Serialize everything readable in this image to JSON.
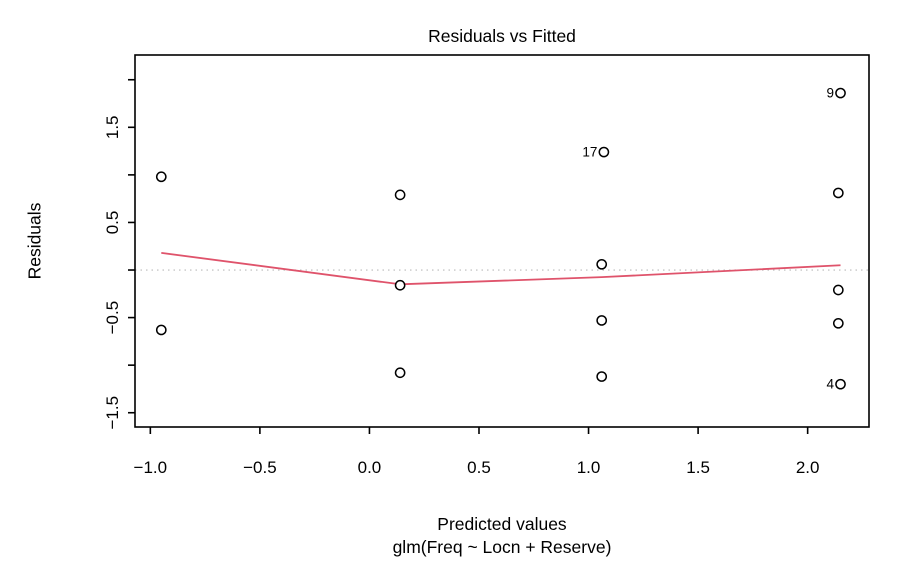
{
  "chart_data": {
    "type": "scatter",
    "title": "Residuals vs Fitted",
    "xlabel": "Predicted values",
    "sublabel": "glm(Freq ~ Locn + Reserve)",
    "ylabel": "Residuals",
    "xlim": [
      -1.07,
      2.28
    ],
    "ylim": [
      -1.65,
      2.26
    ],
    "grid": false,
    "legend": null,
    "colors": {
      "smooth_line": "#DF536B",
      "zero_line": "#C6C6C6",
      "points": "#000000",
      "axis": "#000000"
    },
    "x_ticks": [
      {
        "v": -1.0,
        "label": "−1.0"
      },
      {
        "v": -0.5,
        "label": "−0.5"
      },
      {
        "v": 0.0,
        "label": "0.0"
      },
      {
        "v": 0.5,
        "label": "0.5"
      },
      {
        "v": 1.0,
        "label": "1.0"
      },
      {
        "v": 1.5,
        "label": "1.5"
      },
      {
        "v": 2.0,
        "label": "2.0"
      }
    ],
    "y_ticks": [
      {
        "v": 2.0,
        "label": ""
      },
      {
        "v": 1.5,
        "label": "1.5"
      },
      {
        "v": 1.0,
        "label": ""
      },
      {
        "v": 0.5,
        "label": "0.5"
      },
      {
        "v": 0.0,
        "label": ""
      },
      {
        "v": -0.5,
        "label": "−0.5"
      },
      {
        "v": -1.0,
        "label": ""
      },
      {
        "v": -1.5,
        "label": "−1.5"
      }
    ],
    "points": [
      {
        "x": -0.95,
        "y": 0.98,
        "label": ""
      },
      {
        "x": -0.95,
        "y": -0.63,
        "label": ""
      },
      {
        "x": 0.14,
        "y": 0.79,
        "label": ""
      },
      {
        "x": 0.14,
        "y": -0.16,
        "label": ""
      },
      {
        "x": 0.14,
        "y": -1.08,
        "label": ""
      },
      {
        "x": 1.07,
        "y": 1.24,
        "label": "17"
      },
      {
        "x": 1.06,
        "y": 0.06,
        "label": ""
      },
      {
        "x": 1.06,
        "y": -0.53,
        "label": ""
      },
      {
        "x": 1.06,
        "y": -1.12,
        "label": ""
      },
      {
        "x": 2.15,
        "y": 1.86,
        "label": "9"
      },
      {
        "x": 2.14,
        "y": 0.81,
        "label": ""
      },
      {
        "x": 2.14,
        "y": -0.21,
        "label": ""
      },
      {
        "x": 2.14,
        "y": -0.56,
        "label": ""
      },
      {
        "x": 2.15,
        "y": -1.2,
        "label": "4"
      }
    ],
    "smooth_line": [
      {
        "x": -0.95,
        "y": 0.18
      },
      {
        "x": 0.14,
        "y": -0.15
      },
      {
        "x": 1.06,
        "y": -0.075
      },
      {
        "x": 2.15,
        "y": 0.05
      }
    ],
    "zero_line_y": 0
  }
}
